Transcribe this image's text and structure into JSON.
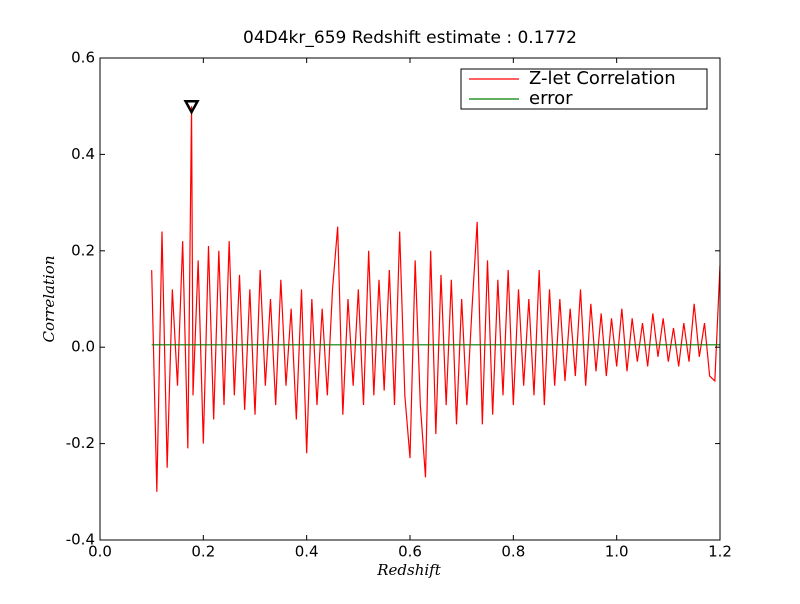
{
  "chart_data": {
    "type": "line",
    "title": "04D4kr_659 Redshift estimate : 0.1772",
    "x_label": "Redshift",
    "y_label": "Correlation",
    "xlim": [
      0.0,
      1.2
    ],
    "ylim": [
      -0.4,
      0.6
    ],
    "xticks": [
      {
        "value": 0,
        "label": "0.0"
      },
      0.2,
      0.4,
      0.6,
      0.8,
      {
        "value": 1,
        "label": "1.0"
      },
      1.2
    ],
    "yticks": [
      -0.4,
      -0.2,
      {
        "value": 0,
        "label": "0.0"
      },
      0.2,
      0.4,
      0.6
    ],
    "legend": "upper right",
    "series": [
      {
        "name": "Z-let Correlation",
        "color": "#ff0000",
        "x": [
          0.1,
          0.11,
          0.12,
          0.13,
          0.14,
          0.15,
          0.16,
          0.17,
          0.1772,
          0.18,
          0.19,
          0.2,
          0.21,
          0.22,
          0.23,
          0.24,
          0.25,
          0.26,
          0.27,
          0.28,
          0.29,
          0.3,
          0.31,
          0.32,
          0.33,
          0.34,
          0.35,
          0.36,
          0.37,
          0.38,
          0.39,
          0.4,
          0.41,
          0.42,
          0.43,
          0.44,
          0.45,
          0.46,
          0.47,
          0.48,
          0.49,
          0.5,
          0.51,
          0.52,
          0.53,
          0.54,
          0.55,
          0.56,
          0.57,
          0.58,
          0.59,
          0.6,
          0.61,
          0.62,
          0.63,
          0.64,
          0.65,
          0.66,
          0.67,
          0.68,
          0.69,
          0.7,
          0.71,
          0.72,
          0.73,
          0.74,
          0.75,
          0.76,
          0.77,
          0.78,
          0.79,
          0.8,
          0.81,
          0.82,
          0.83,
          0.84,
          0.85,
          0.86,
          0.87,
          0.88,
          0.89,
          0.9,
          0.91,
          0.92,
          0.93,
          0.94,
          0.95,
          0.96,
          0.97,
          0.98,
          0.99,
          1.0,
          1.01,
          1.02,
          1.03,
          1.04,
          1.05,
          1.06,
          1.07,
          1.08,
          1.09,
          1.1,
          1.11,
          1.12,
          1.13,
          1.14,
          1.15,
          1.16,
          1.17,
          1.18,
          1.19,
          1.2
        ],
        "values": [
          0.16,
          -0.3,
          0.24,
          -0.25,
          0.12,
          -0.08,
          0.22,
          -0.21,
          0.5,
          -0.1,
          0.18,
          -0.2,
          0.21,
          -0.15,
          0.2,
          -0.12,
          0.22,
          -0.1,
          0.15,
          -0.13,
          0.12,
          -0.14,
          0.16,
          -0.08,
          0.1,
          -0.12,
          0.14,
          -0.08,
          0.08,
          -0.15,
          0.12,
          -0.22,
          0.1,
          -0.12,
          0.08,
          -0.1,
          0.12,
          0.25,
          -0.14,
          0.1,
          -0.08,
          0.12,
          -0.12,
          0.2,
          -0.1,
          0.14,
          -0.09,
          0.16,
          -0.12,
          0.24,
          -0.1,
          -0.23,
          0.18,
          -0.12,
          -0.27,
          0.2,
          -0.18,
          0.15,
          -0.12,
          0.14,
          -0.16,
          0.1,
          -0.12,
          0.08,
          0.26,
          -0.16,
          0.18,
          -0.14,
          0.14,
          -0.1,
          0.16,
          -0.12,
          0.12,
          -0.08,
          0.1,
          -0.1,
          0.16,
          -0.12,
          0.12,
          -0.08,
          0.1,
          -0.07,
          0.08,
          -0.06,
          0.12,
          -0.08,
          0.09,
          -0.05,
          0.07,
          -0.06,
          0.06,
          -0.04,
          0.08,
          -0.05,
          0.06,
          -0.03,
          0.05,
          -0.04,
          0.07,
          -0.02,
          0.06,
          -0.03,
          0.04,
          -0.04,
          0.05,
          -0.03,
          0.09,
          -0.02,
          0.05,
          -0.06,
          -0.07,
          0.17
        ]
      },
      {
        "name": "error",
        "color": "#008000",
        "x": [
          0.1,
          1.2
        ],
        "values": [
          0.005,
          0.005
        ]
      }
    ],
    "marker": {
      "x": 0.1772,
      "y": 0.5
    }
  }
}
